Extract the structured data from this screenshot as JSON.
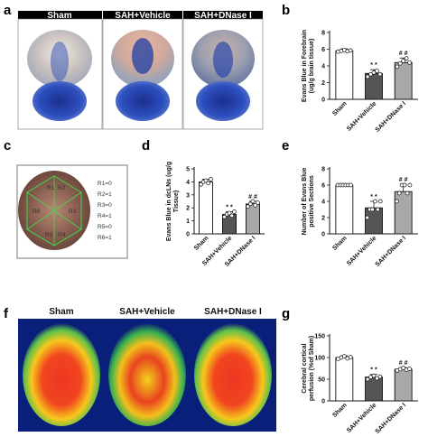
{
  "panels": {
    "a": {
      "label": "a",
      "titles": [
        "Sham",
        "SAH+Vehicle",
        "SAH+DNase I"
      ]
    },
    "c": {
      "label": "c",
      "regions": [
        "R1=0",
        "R2=1",
        "R3=0",
        "R4=1",
        "R5=0",
        "R6=1"
      ],
      "region_marks": [
        "R1",
        "R2",
        "R3",
        "R4",
        "R5",
        "R6"
      ]
    },
    "f": {
      "label": "f",
      "titles": [
        "Sham",
        "SAH+Vehicle",
        "SAH+DNase I"
      ]
    }
  },
  "colors": {
    "sham_bar": "#ffffff",
    "vehicle_bar": "#555555",
    "dnase_bar": "#a8a8a8",
    "header_bg": "#000000",
    "dye_blue": "#1c3fa8",
    "perfusion_red": "#e8281e",
    "perfusion_yellow": "#f5e21a"
  },
  "chart_data": [
    {
      "panel": "b",
      "type": "bar",
      "categories": [
        "Sham",
        "SAH+Vehicle",
        "SAH+DNase I"
      ],
      "values": [
        5.8,
        3.1,
        4.4
      ],
      "errors": [
        0.25,
        0.45,
        0.55
      ],
      "points": [
        [
          5.7,
          5.8,
          5.9,
          5.75,
          5.85
        ],
        [
          2.7,
          3.0,
          3.2,
          3.4,
          3.0
        ],
        [
          3.9,
          4.3,
          4.6,
          4.9,
          4.4
        ]
      ],
      "significance": [
        "",
        "**",
        "##"
      ],
      "ylabel": "Evans Blue in Forebrain (ug/g brain tissue)",
      "ylim": [
        0,
        8
      ],
      "yticks": [
        0,
        2,
        4,
        6,
        8
      ]
    },
    {
      "panel": "d",
      "type": "bar",
      "categories": [
        "Sham",
        "SAH+Vehicle",
        "SAH+DNase I"
      ],
      "values": [
        4.0,
        1.5,
        2.3
      ],
      "errors": [
        0.2,
        0.2,
        0.2
      ],
      "points": [
        [
          3.8,
          4.0,
          4.1,
          3.9,
          4.2
        ],
        [
          1.3,
          1.5,
          1.6,
          1.4,
          1.7
        ],
        [
          2.1,
          2.3,
          2.5,
          2.2,
          2.4
        ]
      ],
      "significance": [
        "",
        "**",
        "##"
      ],
      "ylabel": "Evans Blue in dcLNs (ug/g Tissue)",
      "ylim": [
        0,
        5
      ],
      "yticks": [
        0,
        1,
        2,
        3,
        4,
        5
      ]
    },
    {
      "panel": "e",
      "type": "bar",
      "categories": [
        "Sham",
        "SAH+Vehicle",
        "SAH+DNase I"
      ],
      "values": [
        6.0,
        3.2,
        5.2
      ],
      "errors": [
        0.05,
        0.8,
        0.9
      ],
      "points": [
        [
          6,
          6,
          6,
          6,
          6,
          6
        ],
        [
          2,
          3,
          3,
          4,
          3,
          4
        ],
        [
          4,
          5,
          6,
          6,
          5,
          6
        ]
      ],
      "significance": [
        "",
        "**",
        "##"
      ],
      "ylabel": "Number of Evans Blue positive Sections",
      "ylim": [
        0,
        8
      ],
      "yticks": [
        0,
        2,
        4,
        6,
        8
      ]
    },
    {
      "panel": "g",
      "type": "bar",
      "categories": [
        "Sham",
        "SAH+Vehicle",
        "SAH+DNase I"
      ],
      "values": [
        100,
        55,
        73
      ],
      "errors": [
        4,
        6,
        4
      ],
      "points": [
        [
          97,
          100,
          103,
          98,
          101
        ],
        [
          50,
          55,
          58,
          52,
          56
        ],
        [
          70,
          73,
          76,
          72,
          74
        ]
      ],
      "significance": [
        "",
        "**",
        "##"
      ],
      "ylabel": "Cerebral cortical perfusion (%of Sham)",
      "ylim": [
        0,
        150
      ],
      "yticks": [
        0,
        50,
        100,
        150
      ]
    }
  ]
}
